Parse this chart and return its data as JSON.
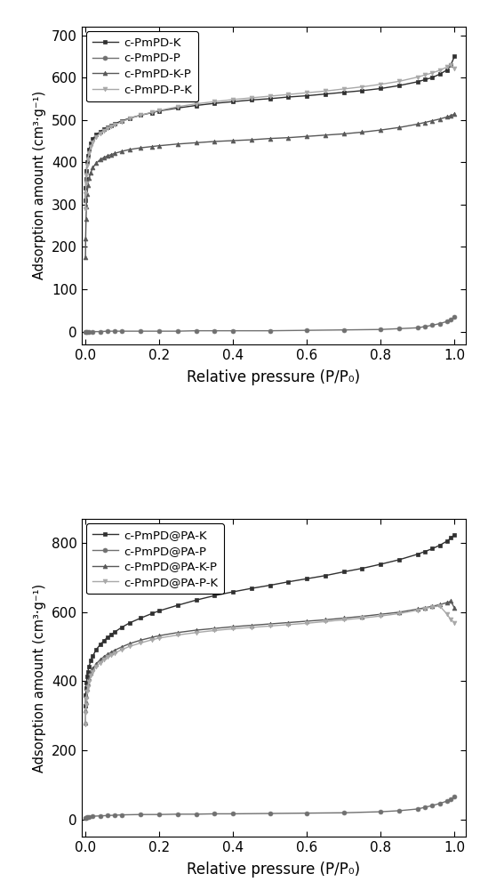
{
  "plot1": {
    "ylabel": "Adsorption amount (cm³·g⁻¹)",
    "xlabel": "Relative pressure (P/P₀)",
    "ylim": [
      -30,
      720
    ],
    "yticks": [
      0,
      100,
      200,
      300,
      400,
      500,
      600,
      700
    ],
    "xlim": [
      -0.01,
      1.03
    ],
    "xticks": [
      0.0,
      0.2,
      0.4,
      0.6,
      0.8,
      1.0
    ],
    "series": [
      {
        "label": "c-PmPD-K",
        "color": "#303030",
        "marker": "s",
        "x": [
          0.0005,
          0.001,
          0.002,
          0.003,
          0.005,
          0.007,
          0.01,
          0.015,
          0.02,
          0.03,
          0.04,
          0.05,
          0.06,
          0.07,
          0.08,
          0.1,
          0.12,
          0.15,
          0.18,
          0.2,
          0.25,
          0.3,
          0.35,
          0.4,
          0.45,
          0.5,
          0.55,
          0.6,
          0.65,
          0.7,
          0.75,
          0.8,
          0.85,
          0.9,
          0.92,
          0.94,
          0.96,
          0.98,
          0.99,
          1.0
        ],
        "y": [
          310,
          340,
          360,
          380,
          400,
          415,
          430,
          445,
          455,
          465,
          472,
          478,
          483,
          487,
          491,
          498,
          504,
          511,
          517,
          521,
          528,
          534,
          539,
          543,
          547,
          550,
          554,
          557,
          561,
          565,
          569,
          574,
          581,
          590,
          595,
          600,
          608,
          618,
          630,
          650
        ]
      },
      {
        "label": "c-PmPD-P",
        "color": "#707070",
        "marker": "o",
        "x": [
          0.001,
          0.003,
          0.005,
          0.01,
          0.02,
          0.04,
          0.06,
          0.08,
          0.1,
          0.15,
          0.2,
          0.25,
          0.3,
          0.35,
          0.4,
          0.5,
          0.6,
          0.7,
          0.8,
          0.85,
          0.9,
          0.92,
          0.94,
          0.96,
          0.98,
          0.99,
          1.0
        ],
        "y": [
          -1,
          -1,
          0,
          0,
          0,
          0,
          1,
          1,
          1,
          1,
          1,
          1,
          2,
          2,
          2,
          2,
          3,
          4,
          5,
          7,
          9,
          12,
          15,
          19,
          24,
          28,
          35
        ]
      },
      {
        "label": "c-PmPD-K-P",
        "color": "#585858",
        "marker": "^",
        "x": [
          0.0005,
          0.001,
          0.002,
          0.003,
          0.005,
          0.007,
          0.01,
          0.015,
          0.02,
          0.03,
          0.04,
          0.05,
          0.06,
          0.07,
          0.08,
          0.1,
          0.12,
          0.15,
          0.18,
          0.2,
          0.25,
          0.3,
          0.35,
          0.4,
          0.45,
          0.5,
          0.55,
          0.6,
          0.65,
          0.7,
          0.75,
          0.8,
          0.85,
          0.9,
          0.92,
          0.94,
          0.96,
          0.98,
          0.99,
          1.0
        ],
        "y": [
          175,
          220,
          265,
          295,
          325,
          345,
          362,
          376,
          387,
          398,
          406,
          411,
          415,
          418,
          421,
          426,
          430,
          434,
          437,
          439,
          443,
          446,
          449,
          451,
          453,
          456,
          458,
          461,
          464,
          467,
          471,
          476,
          482,
          490,
          494,
          498,
          502,
          507,
          510,
          514
        ]
      },
      {
        "label": "c-PmPD-P-K",
        "color": "#a8a8a8",
        "marker": "v",
        "x": [
          0.0005,
          0.001,
          0.002,
          0.003,
          0.005,
          0.007,
          0.01,
          0.015,
          0.02,
          0.03,
          0.04,
          0.05,
          0.06,
          0.07,
          0.08,
          0.1,
          0.12,
          0.15,
          0.18,
          0.2,
          0.25,
          0.3,
          0.35,
          0.4,
          0.45,
          0.5,
          0.55,
          0.6,
          0.65,
          0.7,
          0.75,
          0.8,
          0.85,
          0.9,
          0.92,
          0.94,
          0.96,
          0.98,
          0.99,
          1.0
        ],
        "y": [
          290,
          325,
          350,
          370,
          392,
          407,
          422,
          437,
          447,
          460,
          468,
          475,
          480,
          484,
          488,
          496,
          503,
          511,
          518,
          522,
          531,
          538,
          543,
          548,
          552,
          556,
          560,
          564,
          568,
          573,
          578,
          584,
          591,
          601,
          606,
          611,
          617,
          625,
          630,
          622
        ]
      }
    ]
  },
  "plot2": {
    "ylabel": "Adsorption amount (cm³·g⁻¹)",
    "xlabel": "Relative pressure (P/P₀)",
    "ylim": [
      -50,
      870
    ],
    "yticks": [
      0,
      200,
      400,
      600,
      800
    ],
    "xlim": [
      -0.01,
      1.03
    ],
    "xticks": [
      0.0,
      0.2,
      0.4,
      0.6,
      0.8,
      1.0
    ],
    "series": [
      {
        "label": "c-PmPD@PA-K",
        "color": "#303030",
        "marker": "s",
        "x": [
          0.0005,
          0.001,
          0.002,
          0.003,
          0.005,
          0.007,
          0.01,
          0.015,
          0.02,
          0.03,
          0.04,
          0.05,
          0.06,
          0.07,
          0.08,
          0.1,
          0.12,
          0.15,
          0.18,
          0.2,
          0.25,
          0.3,
          0.35,
          0.4,
          0.45,
          0.5,
          0.55,
          0.6,
          0.65,
          0.7,
          0.75,
          0.8,
          0.85,
          0.9,
          0.92,
          0.94,
          0.96,
          0.98,
          0.99,
          1.0
        ],
        "y": [
          330,
          360,
          380,
          395,
          415,
          428,
          443,
          460,
          473,
          492,
          506,
          517,
          527,
          535,
          543,
          557,
          569,
          583,
          596,
          604,
          620,
          635,
          648,
          659,
          669,
          678,
          688,
          697,
          706,
          717,
          727,
          739,
          752,
          768,
          776,
          784,
          794,
          806,
          815,
          825
        ]
      },
      {
        "label": "c-PmPD@PA-P",
        "color": "#707070",
        "marker": "o",
        "x": [
          0.001,
          0.003,
          0.005,
          0.01,
          0.02,
          0.04,
          0.06,
          0.08,
          0.1,
          0.15,
          0.2,
          0.25,
          0.3,
          0.35,
          0.4,
          0.5,
          0.6,
          0.7,
          0.8,
          0.85,
          0.9,
          0.92,
          0.94,
          0.96,
          0.98,
          0.99,
          1.0
        ],
        "y": [
          3,
          5,
          6,
          8,
          9,
          10,
          11,
          12,
          13,
          14,
          14,
          15,
          15,
          16,
          16,
          17,
          18,
          19,
          22,
          25,
          30,
          35,
          40,
          46,
          53,
          58,
          65
        ]
      },
      {
        "label": "c-PmPD@PA-K-P",
        "color": "#585858",
        "marker": "^",
        "x": [
          0.0005,
          0.001,
          0.002,
          0.003,
          0.005,
          0.007,
          0.01,
          0.015,
          0.02,
          0.03,
          0.04,
          0.05,
          0.06,
          0.07,
          0.08,
          0.1,
          0.12,
          0.15,
          0.18,
          0.2,
          0.25,
          0.3,
          0.35,
          0.4,
          0.45,
          0.5,
          0.55,
          0.6,
          0.65,
          0.7,
          0.75,
          0.8,
          0.85,
          0.9,
          0.92,
          0.94,
          0.96,
          0.98,
          0.99,
          1.0
        ],
        "y": [
          280,
          315,
          340,
          358,
          378,
          393,
          408,
          424,
          436,
          451,
          462,
          471,
          478,
          484,
          490,
          500,
          509,
          519,
          527,
          532,
          541,
          548,
          553,
          558,
          562,
          566,
          570,
          574,
          578,
          583,
          588,
          594,
          600,
          609,
          613,
          617,
          622,
          628,
          632,
          612
        ]
      },
      {
        "label": "c-PmPD@PA-P-K",
        "color": "#a8a8a8",
        "marker": "v",
        "x": [
          0.0005,
          0.001,
          0.002,
          0.003,
          0.005,
          0.007,
          0.01,
          0.015,
          0.02,
          0.03,
          0.04,
          0.05,
          0.06,
          0.07,
          0.08,
          0.1,
          0.12,
          0.15,
          0.18,
          0.2,
          0.25,
          0.3,
          0.35,
          0.4,
          0.45,
          0.5,
          0.55,
          0.6,
          0.65,
          0.7,
          0.75,
          0.8,
          0.85,
          0.9,
          0.92,
          0.94,
          0.96,
          0.98,
          0.99,
          1.0
        ],
        "y": [
          275,
          308,
          332,
          350,
          370,
          384,
          399,
          416,
          428,
          443,
          454,
          463,
          470,
          476,
          482,
          492,
          501,
          511,
          520,
          525,
          534,
          541,
          547,
          552,
          556,
          560,
          564,
          568,
          573,
          578,
          583,
          589,
          596,
          606,
          611,
          615,
          618,
          594,
          578,
          570
        ]
      }
    ]
  }
}
